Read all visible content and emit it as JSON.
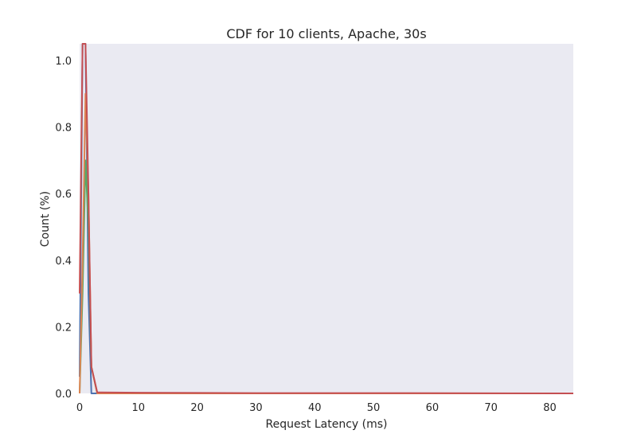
{
  "chart_data": {
    "type": "line",
    "title": "CDF for 10 clients, Apache, 30s",
    "xlabel": "Request Latency (ms)",
    "ylabel": "Count (%)",
    "xlim": [
      0,
      84
    ],
    "ylim": [
      0,
      1.05
    ],
    "xticks": [
      "0",
      "10",
      "20",
      "30",
      "40",
      "50",
      "60",
      "70",
      "80"
    ],
    "yticks": [
      "0.0",
      "0.2",
      "0.4",
      "0.6",
      "0.8",
      "1.0"
    ],
    "grid": false,
    "background_color": "#eaeaf2",
    "series": [
      {
        "color": "#4c72b0",
        "x": [
          0,
          0.5,
          1,
          1.5,
          2,
          3,
          84
        ],
        "y": [
          0.05,
          1.05,
          1.05,
          0.3,
          0.0,
          0.0,
          0.0
        ]
      },
      {
        "color": "#55a868",
        "x": [
          0,
          0.5,
          1,
          1.5,
          2,
          3,
          84
        ],
        "y": [
          0.0,
          0.3,
          0.7,
          0.5,
          0.08,
          0.0,
          0.0
        ]
      },
      {
        "color": "#dd8452",
        "x": [
          0,
          0.5,
          1,
          1.5,
          2,
          3,
          84
        ],
        "y": [
          0.0,
          0.4,
          0.9,
          0.6,
          0.08,
          0.0,
          0.0
        ]
      },
      {
        "color": "#c44e52",
        "x": [
          0,
          0.5,
          1,
          1.5,
          2,
          3,
          10,
          30,
          50,
          65,
          84
        ],
        "y": [
          0.3,
          1.05,
          1.05,
          0.6,
          0.08,
          0.003,
          0.002,
          0.001,
          0.001,
          0.0005,
          0.0
        ]
      }
    ]
  }
}
